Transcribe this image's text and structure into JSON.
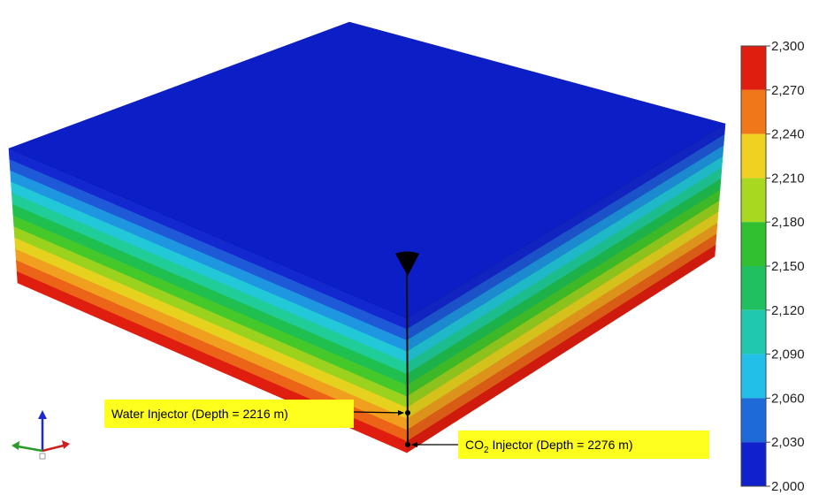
{
  "colorbar": {
    "labels": [
      "2,300",
      "2,270",
      "2,240",
      "2,210",
      "2,180",
      "2,150",
      "2,120",
      "2,090",
      "2,060",
      "2,030",
      "2,000"
    ]
  },
  "annotations": {
    "water_injector": "Water Injector (Depth = 2216 m)",
    "co2_injector": {
      "prefix": "CO",
      "subscript": "2",
      "suffix": " Injector (Depth = 2276 m)"
    }
  }
}
